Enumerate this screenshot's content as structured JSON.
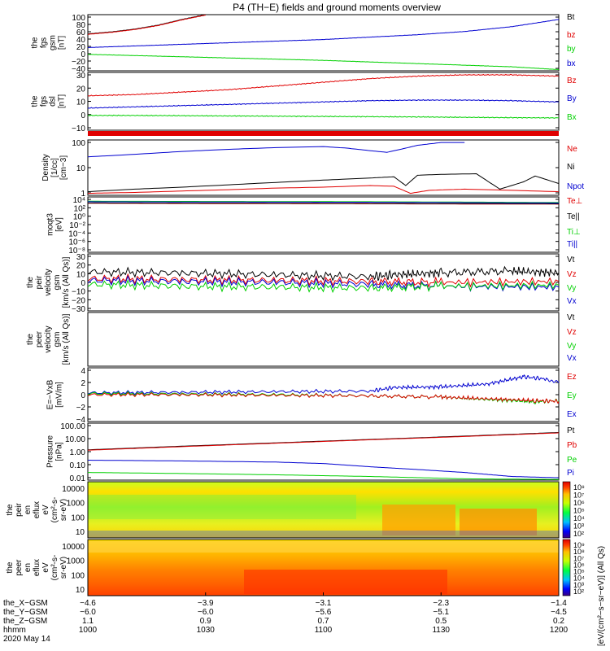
{
  "title": "P4 (TH−E) fields and ground moments overview",
  "colors": {
    "black": "#000000",
    "red": "#e00000",
    "green": "#00d000",
    "blue": "#0000d0"
  },
  "chart_data": [
    {
      "id": "fgs_gsm",
      "type": "line",
      "ylabel": [
        "the",
        "fgs",
        "gsm",
        "[nT]"
      ],
      "yticks": [
        "100",
        "80",
        "60",
        "40",
        "20",
        "0",
        "−20",
        "−40"
      ],
      "ylim": [
        -40,
        100
      ],
      "legend": [
        "Bt",
        "bz",
        "by",
        "bx"
      ],
      "series": [
        {
          "name": "Bt",
          "color": "black",
          "x": [
            1000,
            1010,
            1020,
            1030,
            1040,
            1050
          ],
          "y": [
            52,
            57,
            64,
            74,
            88,
            100
          ]
        },
        {
          "name": "bz",
          "color": "red",
          "x": [
            1000,
            1010,
            1020,
            1030,
            1040,
            1050
          ],
          "y": [
            51,
            56,
            63,
            73,
            87,
            99
          ]
        },
        {
          "name": "bx",
          "color": "blue",
          "x": [
            1000,
            1020,
            1040,
            1060,
            1080,
            1100,
            1120,
            1140,
            1160,
            1180,
            1200
          ],
          "y": [
            18,
            22,
            26,
            30,
            34,
            38,
            44,
            50,
            58,
            70,
            88
          ]
        },
        {
          "name": "by",
          "color": "green",
          "x": [
            1000,
            1020,
            1040,
            1060,
            1080,
            1100,
            1120,
            1140,
            1160,
            1180,
            1200
          ],
          "y": [
            1,
            -2,
            -5,
            -8,
            -11,
            -14,
            -18,
            -22,
            -26,
            -30,
            -37
          ]
        }
      ]
    },
    {
      "id": "fgs_dsl",
      "type": "line",
      "ylabel": [
        "the",
        "fgs",
        "dsl",
        "[nT]"
      ],
      "yticks": [
        "30",
        "20",
        "10",
        "0",
        "−10"
      ],
      "ylim": [
        -15,
        32
      ],
      "legend": [
        "Bz",
        "By",
        "Bx"
      ],
      "series": [
        {
          "name": "Bz",
          "color": "red",
          "x": [
            1000,
            1020,
            1040,
            1060,
            1080,
            1100,
            1120,
            1140,
            1160,
            1180,
            1200
          ],
          "y": [
            13,
            14,
            16,
            18,
            21,
            24,
            27,
            29,
            30,
            30,
            29
          ]
        },
        {
          "name": "By",
          "color": "blue",
          "x": [
            1000,
            1020,
            1040,
            1060,
            1080,
            1100,
            1120,
            1140,
            1160,
            1180,
            1200
          ],
          "y": [
            3,
            4,
            5,
            6,
            7,
            8,
            9,
            9.5,
            9.5,
            9,
            8
          ]
        },
        {
          "name": "Bx",
          "color": "green",
          "x": [
            1000,
            1020,
            1040,
            1060,
            1080,
            1100,
            1120,
            1140,
            1160,
            1180,
            1200
          ],
          "y": [
            -3,
            -3,
            -3.2,
            -3.4,
            -3.6,
            -3.8,
            -4,
            -4.2,
            -4.5,
            -4.8,
            -5
          ]
        }
      ]
    },
    {
      "id": "density",
      "type": "line",
      "scale": "log",
      "ylabel": [
        "Density",
        "[1/cc]",
        "[cm−3]"
      ],
      "yticks": [
        "100",
        "10",
        "1"
      ],
      "ylim": [
        0.4,
        200
      ],
      "legend": [
        "Ne",
        "Ni",
        "Npot"
      ],
      "series": [
        {
          "name": "Npot",
          "color": "blue",
          "x": [
            1000,
            1020,
            1040,
            1060,
            1080,
            1100,
            1110,
            1120,
            1127,
            1135,
            1140,
            1150,
            1160
          ],
          "y": [
            30,
            40,
            55,
            70,
            85,
            95,
            80,
            60,
            50,
            80,
            110,
            150,
            150
          ]
        },
        {
          "name": "Ni",
          "color": "black",
          "x": [
            1000,
            1020,
            1040,
            1060,
            1080,
            1100,
            1120,
            1130,
            1135,
            1140,
            1150,
            1165,
            1175,
            1185,
            1190,
            1200
          ],
          "y": [
            0.6,
            0.8,
            1.0,
            1.3,
            1.7,
            2.2,
            2.8,
            3.2,
            1.2,
            3.8,
            4.2,
            4.5,
            0.8,
            1.8,
            3.5,
            1.5
          ]
        },
        {
          "name": "Ne",
          "color": "red",
          "x": [
            1000,
            1020,
            1040,
            1060,
            1080,
            1100,
            1120,
            1130,
            1137,
            1145,
            1160,
            1180,
            1200
          ],
          "y": [
            0.5,
            0.55,
            0.65,
            0.75,
            0.9,
            1.0,
            1.2,
            1.1,
            0.5,
            0.7,
            0.8,
            0.7,
            0.6
          ]
        }
      ]
    },
    {
      "id": "moqt3",
      "type": "line",
      "scale": "log",
      "ylabel": [
        "moqt3",
        "[eV]"
      ],
      "yticks": [
        "10⁴",
        "10²",
        "10⁰",
        "10⁻²",
        "10⁻⁴",
        "10⁻⁶",
        "10⁻⁸"
      ],
      "ylim": [
        1e-09,
        100000.0
      ],
      "legend": [
        "Te⊥",
        "Te||",
        "Ti⊥",
        "Ti||"
      ],
      "series": [
        {
          "name": "Ti⊥",
          "color": "green",
          "x": [
            1000,
            1060,
            1120,
            1200
          ],
          "y": [
            8000,
            7000,
            6000,
            4000
          ]
        },
        {
          "name": "Te⊥",
          "color": "red",
          "x": [
            1000,
            1060,
            1120,
            1200
          ],
          "y": [
            2500,
            2000,
            1800,
            1500
          ]
        },
        {
          "name": "Te||",
          "color": "black",
          "x": [
            1000,
            1060,
            1120,
            1200
          ],
          "y": [
            3000,
            2500,
            2200,
            1800
          ]
        },
        {
          "name": "Ti||",
          "color": "blue",
          "x": [
            1000,
            1060,
            1120,
            1200
          ],
          "y": [
            6000,
            5000,
            4500,
            3000
          ]
        }
      ]
    },
    {
      "id": "peir_velocity",
      "type": "line",
      "ylabel": [
        "the",
        "peir",
        "velocity",
        "gsm",
        "[km/s (All Qs)]"
      ],
      "yticks": [
        "30",
        "20",
        "10",
        "0",
        "−10",
        "−20",
        "−30"
      ],
      "ylim": [
        -30,
        30
      ],
      "legend": [
        "Vt",
        "Vz",
        "Vy",
        "Vx"
      ],
      "series": [
        {
          "name": "Vt",
          "color": "black",
          "x": [
            1000,
            1040,
            1080,
            1120,
            1130,
            1150,
            1180,
            1200
          ],
          "y": [
            11,
            10,
            8,
            6,
            8,
            10,
            12,
            10
          ]
        },
        {
          "name": "Vz",
          "color": "red",
          "x": [
            1000,
            1040,
            1080,
            1120,
            1150,
            1200
          ],
          "y": [
            4,
            3,
            2,
            1,
            0,
            1
          ]
        },
        {
          "name": "Vx",
          "color": "blue",
          "x": [
            1000,
            1040,
            1080,
            1120,
            1150,
            1200
          ],
          "y": [
            2,
            1,
            0,
            -2,
            -4,
            -5
          ]
        },
        {
          "name": "Vy",
          "color": "green",
          "x": [
            1000,
            1040,
            1080,
            1120,
            1150,
            1200
          ],
          "y": [
            -2,
            -4,
            -5,
            -6,
            -4,
            -3
          ]
        }
      ]
    },
    {
      "id": "peer_velocity",
      "type": "line",
      "ylabel": [
        "the",
        "peer",
        "velocity",
        "gsm",
        "[km/s (All Qs)]"
      ],
      "yticks": [],
      "ylim": [
        -30,
        30
      ],
      "legend": [
        "Vt",
        "Vz",
        "Vy",
        "Vx"
      ],
      "series": []
    },
    {
      "id": "efield",
      "type": "line",
      "ylabel": [
        "E=−VxB",
        "[mV/m]"
      ],
      "yticks": [
        "4",
        "2",
        "0",
        "−2",
        "−4"
      ],
      "ylim": [
        -4.5,
        4.5
      ],
      "legend": [
        "Ez",
        "Ey",
        "Ex"
      ],
      "series": [
        {
          "name": "Ex",
          "color": "blue",
          "x": [
            1000,
            1040,
            1080,
            1120,
            1130,
            1150,
            1170,
            1185,
            1195,
            1200
          ],
          "y": [
            0.3,
            0.4,
            0.5,
            0.6,
            1.2,
            1.3,
            1.8,
            3.0,
            2.6,
            2.2
          ]
        },
        {
          "name": "Ey",
          "color": "green",
          "x": [
            1000,
            1040,
            1080,
            1120,
            1150,
            1170,
            1190,
            1200
          ],
          "y": [
            0.2,
            0.1,
            0,
            -0.2,
            -0.4,
            -0.8,
            -1.2,
            -1.0
          ]
        },
        {
          "name": "Ez",
          "color": "red",
          "x": [
            1000,
            1040,
            1080,
            1120,
            1150,
            1170,
            1190,
            1200
          ],
          "y": [
            0,
            0,
            -0.1,
            -0.2,
            -0.4,
            -0.7,
            -1.0,
            -1.1
          ]
        }
      ]
    },
    {
      "id": "pressure",
      "type": "line",
      "scale": "log",
      "ylabel": [
        "Pressure",
        "[nPa]"
      ],
      "yticks": [
        "100.00",
        "10.00",
        "1.00",
        "0.10",
        "0.01"
      ],
      "ylim": [
        0.008,
        150
      ],
      "legend": [
        "Pt",
        "Pb",
        "Pe",
        "Pi"
      ],
      "series": [
        {
          "name": "Pt",
          "color": "black",
          "x": [
            1000,
            1040,
            1080,
            1120,
            1160,
            1200
          ],
          "y": [
            1.5,
            2.8,
            5.0,
            9.0,
            16,
            30
          ]
        },
        {
          "name": "Pb",
          "color": "red",
          "x": [
            1000,
            1040,
            1080,
            1120,
            1160,
            1200
          ],
          "y": [
            1.4,
            2.6,
            4.7,
            8.5,
            15,
            28
          ]
        },
        {
          "name": "Pi",
          "color": "blue",
          "x": [
            1000,
            1040,
            1080,
            1100,
            1120,
            1140,
            1160,
            1180,
            1200
          ],
          "y": [
            0.25,
            0.22,
            0.18,
            0.14,
            0.08,
            0.05,
            0.03,
            0.015,
            0.012
          ]
        },
        {
          "name": "Pe",
          "color": "green",
          "x": [
            1000,
            1040,
            1080,
            1120,
            1160,
            1200
          ],
          "y": [
            0.03,
            0.025,
            0.02,
            0.015,
            0.01,
            0.009
          ]
        }
      ]
    },
    {
      "id": "peir_eflux",
      "type": "heatmap",
      "ylabel": [
        "the",
        "peir",
        "en",
        "eflux",
        "eV",
        "(cm²-s-",
        "sr-eV)"
      ],
      "yticks": [
        "10000",
        "1000",
        "100",
        "10"
      ],
      "ylim": [
        5,
        25000
      ]
    },
    {
      "id": "peer_eflux",
      "type": "heatmap",
      "ylabel": [
        "the",
        "peer",
        "en",
        "eflux",
        "eV",
        "(cm²-s-",
        "sr-eV)"
      ],
      "yticks": [
        "10000",
        "1000",
        "100",
        "10"
      ],
      "ylim": [
        5,
        25000
      ]
    }
  ],
  "colorbar_top": {
    "label": "[eV/(cm²−s−sr−eV)] (All Qs)",
    "ticks": [
      "10⁸",
      "10⁷",
      "10⁶",
      "10⁵",
      "10⁴",
      "10³",
      "10²"
    ]
  },
  "colorbar_bottom": {
    "label": "[eV/(cm²−s−sr−eV)] (All Qs)",
    "ticks": [
      "10⁹",
      "10⁸",
      "10⁷",
      "10⁶",
      "10⁵",
      "10⁴",
      "10³",
      "10²"
    ]
  },
  "xaxis": {
    "range": [
      1000,
      1200
    ],
    "row_labels": [
      "the_X−GSM",
      "the_Y−GSM",
      "the_Z−GSM",
      "hhmm",
      "2020 May 14"
    ],
    "ticks": [
      {
        "x": 1000,
        "values": [
          "−4.6",
          "−6.0",
          "1.1",
          "1000"
        ]
      },
      {
        "x": 1030,
        "values": [
          "−3.9",
          "−6.0",
          "0.9",
          "1030"
        ]
      },
      {
        "x": 1060,
        "values": [
          "−3.1",
          "−5.6",
          "0.7",
          "1100"
        ]
      },
      {
        "x": 1090,
        "values": [
          "−2.3",
          "−5.1",
          "0.5",
          "1130"
        ]
      },
      {
        "x": 1120,
        "values": [
          "−1.4",
          "−4.5",
          "0.2",
          "1200"
        ]
      }
    ]
  }
}
